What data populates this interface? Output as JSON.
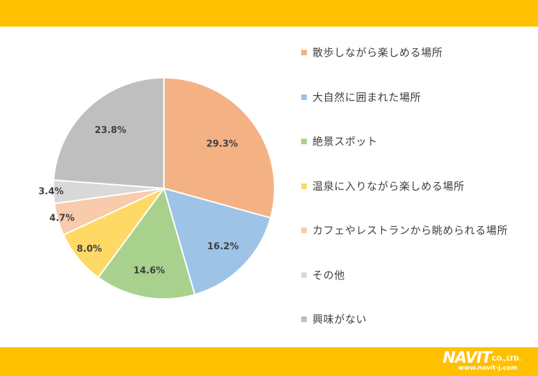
{
  "chart_data": {
    "type": "pie",
    "categories": [
      "散歩しながら楽しめる場所",
      "大自然に囲まれた場所",
      "絶景スポット",
      "温泉に入りながら楽しめる場所",
      "カフェやレストランから眺められる場所",
      "その他",
      "興味がない"
    ],
    "values": [
      29.3,
      16.2,
      14.6,
      8.0,
      4.7,
      3.4,
      23.8
    ],
    "data_labels": [
      "29.3%",
      "16.2%",
      "14.6%",
      "8.0%",
      "4.7%",
      "3.4%",
      "23.8%"
    ],
    "colors": [
      "#f4b183",
      "#9dc3e6",
      "#a9d18e",
      "#ffd966",
      "#f8cbad",
      "#d9d9d9",
      "#bfbfbf"
    ],
    "legend_position": "right"
  },
  "branding": {
    "logo_text": "NAVIT",
    "logo_suffix": "CO.,LTD.",
    "url": "www.navit-j.com"
  }
}
